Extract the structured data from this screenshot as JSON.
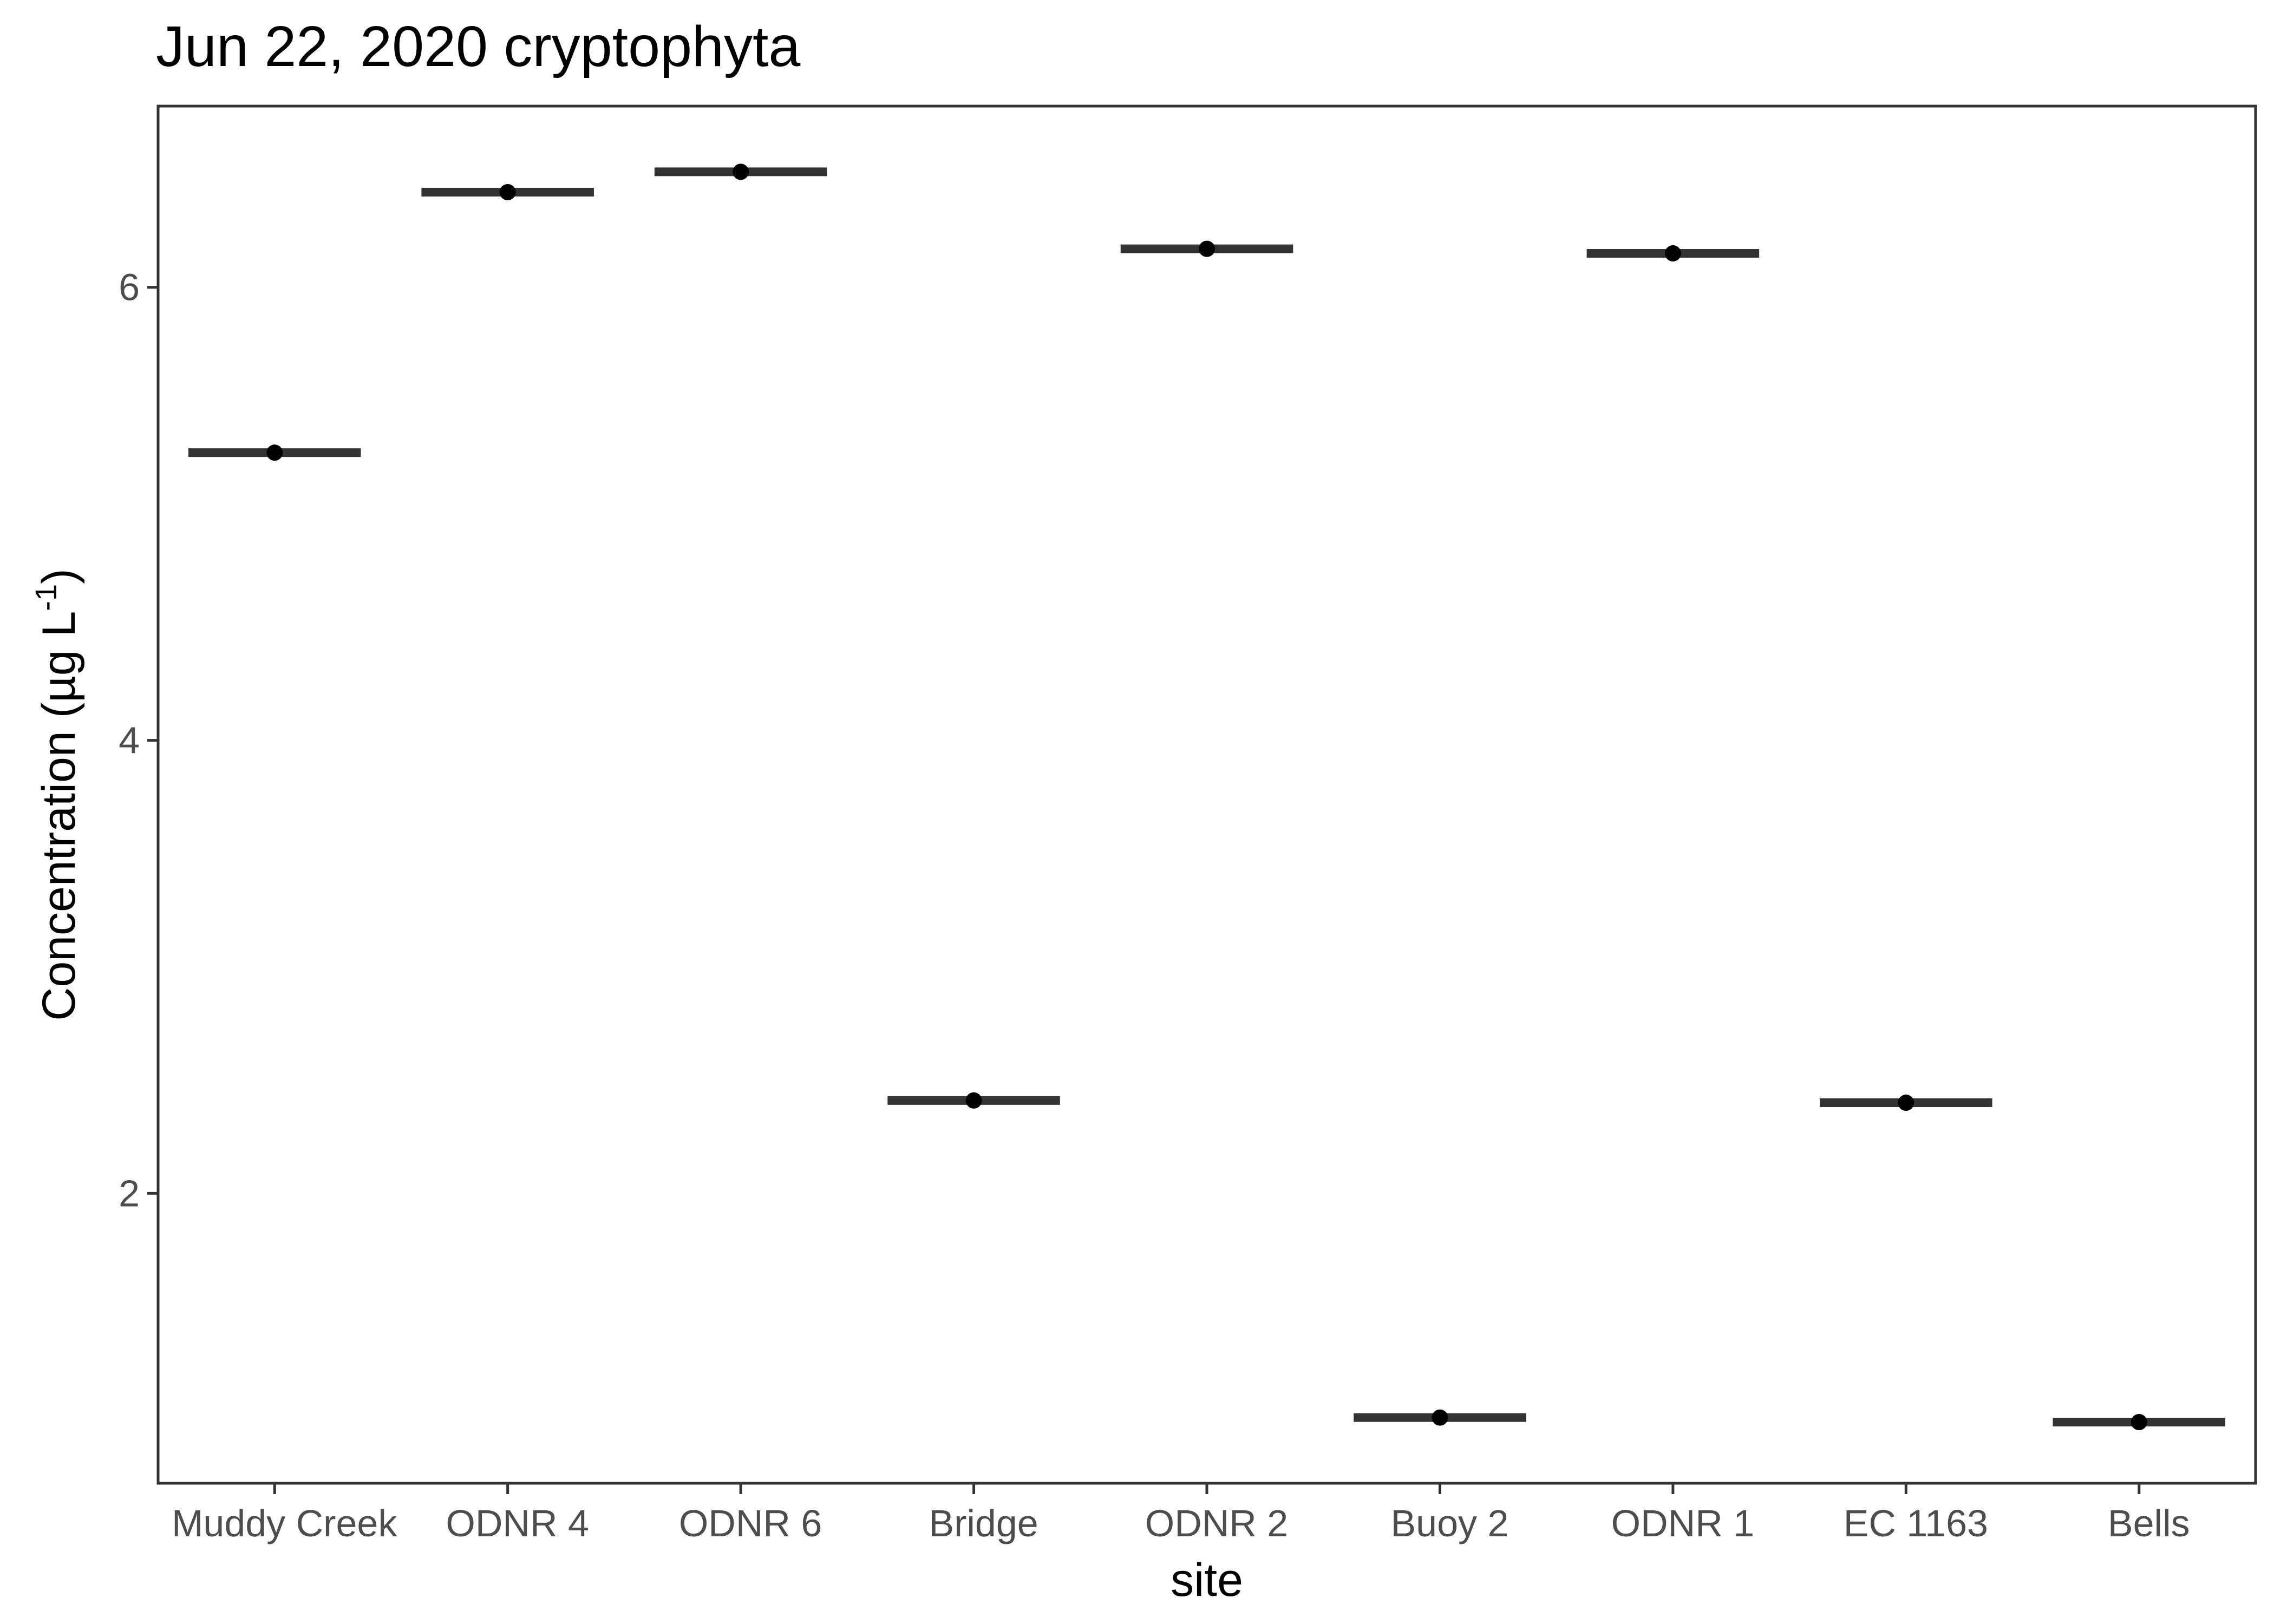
{
  "chart_data": {
    "type": "scatter",
    "title": "Jun 22, 2020 cryptophyta",
    "xlabel": "site",
    "ylabel": {
      "main": "Concentration (µg L",
      "superscript": "-1",
      "close": ")"
    },
    "categories": [
      "Muddy Creek",
      "ODNR 4",
      "ODNR 6",
      "Bridge",
      "ODNR 2",
      "Buoy 2",
      "ODNR 1",
      "EC 1163",
      "Bells"
    ],
    "values": [
      5.27,
      6.42,
      6.51,
      2.41,
      6.17,
      1.01,
      6.15,
      2.4,
      0.99
    ],
    "ylim": [
      0.72,
      6.8
    ],
    "yticks": [
      2,
      4,
      6
    ],
    "ytick_labels": [
      "2",
      "4",
      "6"
    ],
    "grid": false,
    "colors": {
      "mark": "#000000",
      "bar": "#333333",
      "panel": "#333333"
    }
  }
}
